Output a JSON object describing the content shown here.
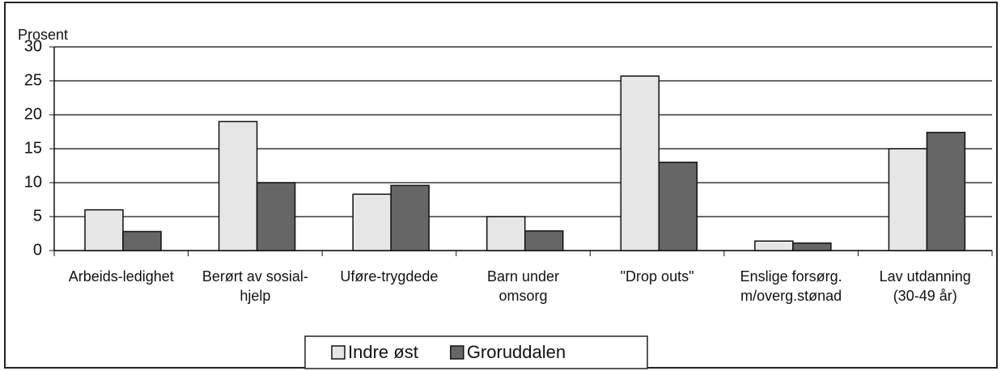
{
  "chart_data": {
    "type": "bar",
    "y_label": "Prosent",
    "categories": [
      [
        "Arbeids-ledighet"
      ],
      [
        "Berørt av sosial-",
        "hjelp"
      ],
      [
        "Uføre-trygdede"
      ],
      [
        "Barn under",
        "omsorg"
      ],
      [
        "\"Drop outs\""
      ],
      [
        "Enslige forsørg.",
        "m/overg.stønad"
      ],
      [
        "Lav utdanning",
        "(30-49 år)"
      ]
    ],
    "series": [
      {
        "name": "Indre øst",
        "color": "#e6e6e6",
        "values": [
          6,
          19,
          8.3,
          5,
          25.7,
          1.4,
          15
        ]
      },
      {
        "name": "Groruddalen",
        "color": "#666666",
        "values": [
          2.8,
          10,
          9.6,
          2.9,
          13,
          1.1,
          17.4
        ]
      }
    ],
    "ylim": [
      0,
      30
    ],
    "yticks": [
      0,
      5,
      10,
      15,
      20,
      25,
      30
    ],
    "grid": true,
    "legend": "bottom"
  }
}
